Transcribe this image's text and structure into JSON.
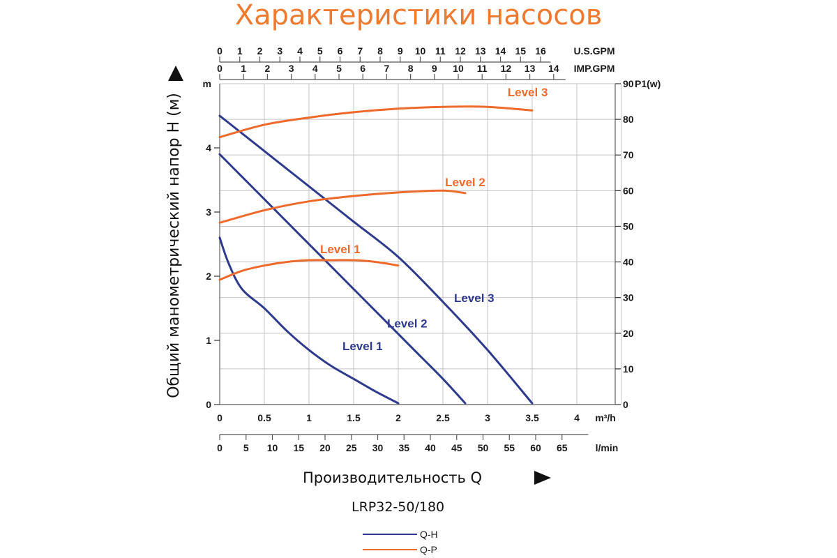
{
  "title": "Характеристики насосов",
  "model": "LRP32-50/180",
  "colors": {
    "qh": "#2e3a8c",
    "qp": "#ee6a2c",
    "title": "#ee7a30",
    "grid": "#c4c4c4"
  },
  "chart_data": {
    "type": "line",
    "xlabel": "Производительность Q",
    "ylabel": "Общий манометрический напор H (м)",
    "x_axes": {
      "m3h": {
        "unit": "m³/h",
        "range": [
          0,
          4.5
        ],
        "ticks": [
          "0",
          "0.5",
          "1",
          "1.5",
          "2",
          "2.5",
          "3",
          "3.5",
          "4"
        ]
      },
      "lmin": {
        "unit": "l/min",
        "ticks": [
          "0",
          "5",
          "10",
          "15",
          "20",
          "25",
          "30",
          "35",
          "40",
          "45",
          "50",
          "55",
          "60",
          "65"
        ]
      },
      "usgpm": {
        "unit": "U.S.GPM",
        "ticks": [
          "0",
          "1",
          "2",
          "3",
          "4",
          "5",
          "6",
          "7",
          "8",
          "9",
          "10",
          "11",
          "12",
          "13",
          "14",
          "15",
          "16"
        ]
      },
      "impgpm": {
        "unit": "IMP.GPM",
        "ticks": [
          "0",
          "1",
          "2",
          "3",
          "4",
          "5",
          "6",
          "7",
          "8",
          "9",
          "10",
          "11",
          "12",
          "13",
          "14"
        ]
      }
    },
    "y_left": {
      "unit": "m",
      "range": [
        0,
        5
      ],
      "ticks": [
        "0",
        "1",
        "2",
        "3",
        "4"
      ]
    },
    "y_right": {
      "unit": "P1(w)",
      "range": [
        0,
        90
      ],
      "ticks": [
        "0",
        "10",
        "20",
        "30",
        "40",
        "50",
        "60",
        "70",
        "80",
        "90"
      ]
    },
    "grid": true,
    "legend": {
      "position": "bottom-center",
      "entries": [
        {
          "label": "Q-H",
          "color": "#2e3a8c"
        },
        {
          "label": "Q-P",
          "color": "#ee6a2c"
        }
      ]
    },
    "series": [
      {
        "name": "Level 1",
        "kind": "Q-H",
        "axis": "left",
        "points": [
          [
            0,
            2.6
          ],
          [
            0.1,
            2.2
          ],
          [
            0.25,
            1.8
          ],
          [
            0.5,
            1.5
          ],
          [
            0.75,
            1.15
          ],
          [
            1.0,
            0.85
          ],
          [
            1.25,
            0.6
          ],
          [
            1.5,
            0.4
          ],
          [
            1.75,
            0.2
          ],
          [
            2.0,
            0.02
          ]
        ]
      },
      {
        "name": "Level 2",
        "kind": "Q-H",
        "axis": "left",
        "points": [
          [
            0,
            3.9
          ],
          [
            0.25,
            3.55
          ],
          [
            0.5,
            3.2
          ],
          [
            0.75,
            2.85
          ],
          [
            1.0,
            2.5
          ],
          [
            1.25,
            2.15
          ],
          [
            1.5,
            1.8
          ],
          [
            1.75,
            1.45
          ],
          [
            2.0,
            1.1
          ],
          [
            2.25,
            0.75
          ],
          [
            2.5,
            0.4
          ],
          [
            2.75,
            0.02
          ]
        ]
      },
      {
        "name": "Level 3",
        "kind": "Q-H",
        "axis": "left",
        "points": [
          [
            0,
            4.5
          ],
          [
            0.5,
            3.95
          ],
          [
            1.0,
            3.4
          ],
          [
            1.5,
            2.85
          ],
          [
            2.0,
            2.3
          ],
          [
            2.5,
            1.6
          ],
          [
            3.0,
            0.85
          ],
          [
            3.5,
            0.02
          ]
        ]
      },
      {
        "name": "Level 1",
        "kind": "Q-P",
        "axis": "right",
        "points": [
          [
            0,
            35
          ],
          [
            0.25,
            37.5
          ],
          [
            0.5,
            39
          ],
          [
            0.75,
            40
          ],
          [
            1.0,
            40.5
          ],
          [
            1.25,
            40.5
          ],
          [
            1.5,
            40.5
          ],
          [
            1.75,
            40
          ],
          [
            2.0,
            39
          ]
        ]
      },
      {
        "name": "Level 2",
        "kind": "Q-P",
        "axis": "right",
        "points": [
          [
            0,
            51
          ],
          [
            0.5,
            54.5
          ],
          [
            1.0,
            57
          ],
          [
            1.5,
            58.5
          ],
          [
            2.0,
            59.5
          ],
          [
            2.5,
            60
          ],
          [
            2.75,
            59.3
          ]
        ]
      },
      {
        "name": "Level 3",
        "kind": "Q-P",
        "axis": "right",
        "points": [
          [
            0,
            75
          ],
          [
            0.5,
            78.5
          ],
          [
            1.0,
            80.5
          ],
          [
            1.5,
            82
          ],
          [
            2.0,
            83
          ],
          [
            2.5,
            83.5
          ],
          [
            3.0,
            83.5
          ],
          [
            3.5,
            82.5
          ]
        ]
      }
    ]
  }
}
